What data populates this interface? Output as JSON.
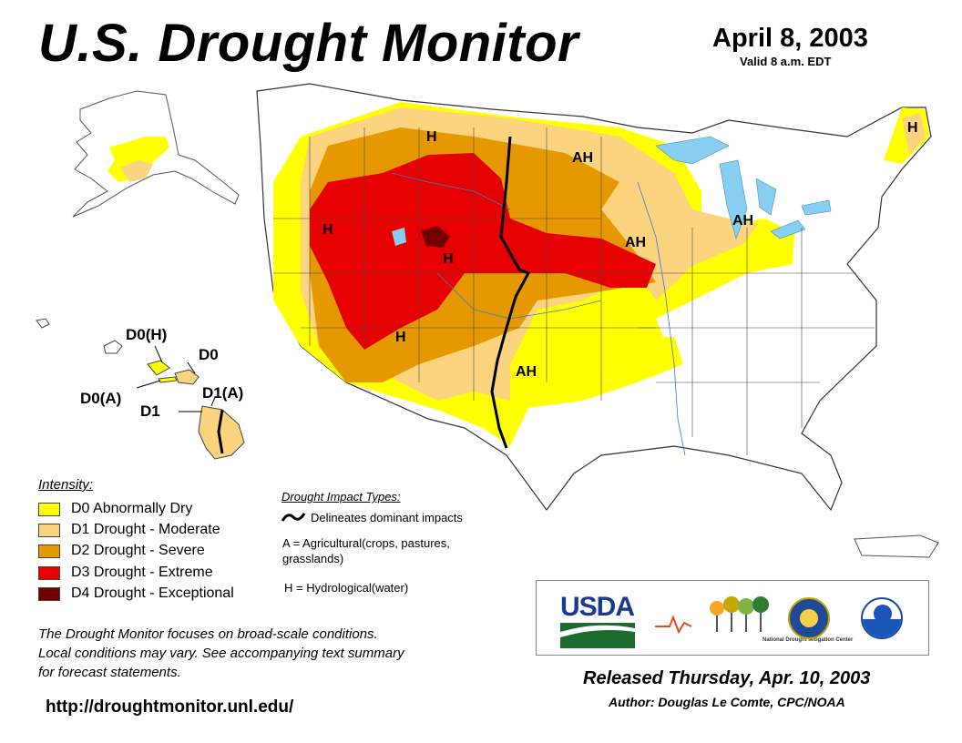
{
  "header": {
    "title": "U.S. Drought Monitor",
    "date": "April 8, 2003",
    "valid": "Valid 8 a.m. EDT"
  },
  "map_labels": {
    "conus": [
      "H",
      "AH",
      "H",
      "H",
      "AH",
      "AH",
      "H",
      "AH",
      "H"
    ],
    "hawaii": [
      "D0(H)",
      "D0",
      "D0(A)",
      "D1(A)",
      "D1"
    ]
  },
  "legend": {
    "title": "Intensity:",
    "items": [
      {
        "label": "D0 Abnormally Dry",
        "color": "#ffff00"
      },
      {
        "label": "D1 Drought - Moderate",
        "color": "#fcd37f"
      },
      {
        "label": "D2 Drought - Severe",
        "color": "#e69800"
      },
      {
        "label": "D3 Drought - Extreme",
        "color": "#e60000"
      },
      {
        "label": "D4 Drought - Exceptional",
        "color": "#730000"
      }
    ]
  },
  "impacts": {
    "title": "Drought Impact Types:",
    "line_label": "Delineates dominant impacts",
    "a_label": "A = Agricultural(crops, pastures,",
    "a_label2": "grasslands)",
    "h_label": "H = Hydrological(water)"
  },
  "note": {
    "line1": "The Drought Monitor focuses on broad-scale conditions.",
    "line2": "Local conditions may vary. See accompanying text summary",
    "line3": "for forecast statements."
  },
  "url": "http://droughtmonitor.unl.edu/",
  "released": "Released Thursday, Apr. 10, 2003",
  "author": "Author: Douglas Le Comte, CPC/NOAA",
  "logos": {
    "usda": "USDA",
    "ndmc": "National Drought Mitigation Center"
  },
  "colors": {
    "d0": "#ffff00",
    "d1": "#fcd37f",
    "d2": "#e69800",
    "d3": "#e60000",
    "d4": "#730000",
    "water": "#97dbf2",
    "lakes": "#87cef0"
  }
}
